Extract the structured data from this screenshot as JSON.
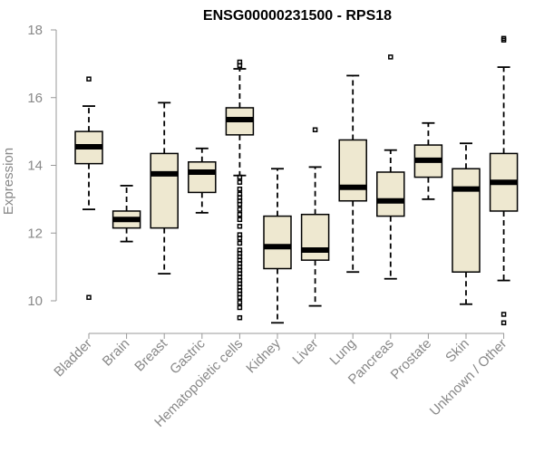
{
  "chart_data": {
    "type": "box",
    "title": "ENSG00000231500 - RPS18",
    "xlabel": "",
    "ylabel": "Expression",
    "ylim": [
      9.2,
      18.2
    ],
    "yticks": [
      10,
      12,
      14,
      16,
      18
    ],
    "categories": [
      "Bladder",
      "Brain",
      "Breast",
      "Gastric",
      "Hematopoietic cells",
      "Kidney",
      "Liver",
      "Lung",
      "Pancreas",
      "Prostate",
      "Skin",
      "Unknown / Other"
    ],
    "boxes": [
      {
        "category": "Bladder",
        "whisker_low": 12.7,
        "q1": 14.05,
        "median": 14.55,
        "q3": 15.0,
        "whisker_high": 15.75,
        "outliers": [
          16.55,
          10.1
        ]
      },
      {
        "category": "Brain",
        "whisker_low": 11.75,
        "q1": 12.15,
        "median": 12.4,
        "q3": 12.65,
        "whisker_high": 13.4,
        "outliers": []
      },
      {
        "category": "Breast",
        "whisker_low": 10.8,
        "q1": 12.15,
        "median": 13.75,
        "q3": 14.35,
        "whisker_high": 15.85,
        "outliers": []
      },
      {
        "category": "Gastric",
        "whisker_low": 12.6,
        "q1": 13.2,
        "median": 13.8,
        "q3": 14.1,
        "whisker_high": 14.5,
        "outliers": []
      },
      {
        "category": "Hematopoietic cells",
        "whisker_low": 13.7,
        "q1": 14.9,
        "median": 15.35,
        "q3": 15.7,
        "whisker_high": 16.85,
        "outliers": [
          17.05,
          16.95,
          13.65,
          13.5,
          13.3,
          13.15,
          13.05,
          12.95,
          12.85,
          12.7,
          12.55,
          12.4,
          12.2,
          11.95,
          11.85,
          11.7,
          11.5,
          11.4,
          11.3,
          11.2,
          11.1,
          11.0,
          10.9,
          10.8,
          10.7,
          10.6,
          10.5,
          10.4,
          10.3,
          10.2,
          10.1,
          9.95,
          9.8,
          9.5
        ]
      },
      {
        "category": "Kidney",
        "whisker_low": 9.35,
        "q1": 10.95,
        "median": 11.6,
        "q3": 12.5,
        "whisker_high": 13.9,
        "outliers": []
      },
      {
        "category": "Liver",
        "whisker_low": 9.85,
        "q1": 11.2,
        "median": 11.5,
        "q3": 12.55,
        "whisker_high": 13.95,
        "outliers": [
          15.05
        ]
      },
      {
        "category": "Lung",
        "whisker_low": 10.85,
        "q1": 12.95,
        "median": 13.35,
        "q3": 14.75,
        "whisker_high": 16.65,
        "outliers": []
      },
      {
        "category": "Pancreas",
        "whisker_low": 10.65,
        "q1": 12.5,
        "median": 12.95,
        "q3": 13.8,
        "whisker_high": 14.45,
        "outliers": [
          17.2
        ]
      },
      {
        "category": "Prostate",
        "whisker_low": 13.0,
        "q1": 13.65,
        "median": 14.15,
        "q3": 14.6,
        "whisker_high": 15.25,
        "outliers": []
      },
      {
        "category": "Skin",
        "whisker_low": 9.9,
        "q1": 10.85,
        "median": 13.3,
        "q3": 13.9,
        "whisker_high": 14.65,
        "outliers": []
      },
      {
        "category": "Unknown / Other",
        "whisker_low": 10.6,
        "q1": 12.65,
        "median": 13.5,
        "q3": 14.35,
        "whisker_high": 16.9,
        "outliers": [
          17.75,
          17.7,
          9.6,
          9.35
        ]
      }
    ],
    "grid": false,
    "legend": "none"
  },
  "colors": {
    "box_fill": "#eee8d0",
    "axis": "#999999",
    "text_muted": "#888888"
  }
}
